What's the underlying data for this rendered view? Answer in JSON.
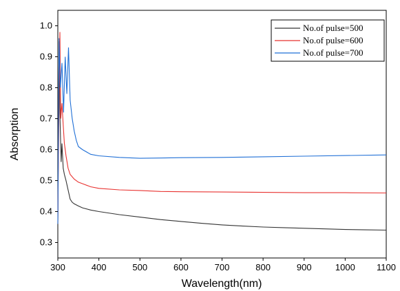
{
  "chart_data": {
    "type": "line",
    "title": "",
    "xlabel": "Wavelength(nm)",
    "ylabel": "Absorption",
    "xlim": [
      300,
      1100
    ],
    "ylim": [
      0.25,
      1.05
    ],
    "xticks": [
      300,
      400,
      500,
      600,
      700,
      800,
      900,
      1000,
      1100
    ],
    "yticks": [
      0.3,
      0.4,
      0.5,
      0.6,
      0.7,
      0.8,
      0.9,
      1.0
    ],
    "yticklabels": [
      "0.3",
      "0.4",
      "0.5",
      "0.6",
      "0.7",
      "0.8",
      "0.9",
      "1.0"
    ],
    "legend_position": "top-right",
    "grid": false,
    "series": [
      {
        "name": "No.of pulse=500",
        "color": "#333333",
        "points": [
          [
            300,
            0.36
          ],
          [
            303,
            0.95
          ],
          [
            305,
            0.72
          ],
          [
            308,
            0.56
          ],
          [
            310,
            0.62
          ],
          [
            313,
            0.54
          ],
          [
            316,
            0.52
          ],
          [
            320,
            0.5
          ],
          [
            325,
            0.47
          ],
          [
            330,
            0.44
          ],
          [
            335,
            0.43
          ],
          [
            340,
            0.425
          ],
          [
            350,
            0.418
          ],
          [
            360,
            0.412
          ],
          [
            380,
            0.405
          ],
          [
            400,
            0.4
          ],
          [
            450,
            0.39
          ],
          [
            500,
            0.382
          ],
          [
            550,
            0.374
          ],
          [
            600,
            0.368
          ],
          [
            650,
            0.362
          ],
          [
            700,
            0.357
          ],
          [
            750,
            0.353
          ],
          [
            800,
            0.35
          ],
          [
            850,
            0.348
          ],
          [
            900,
            0.346
          ],
          [
            950,
            0.344
          ],
          [
            1000,
            0.342
          ],
          [
            1050,
            0.341
          ],
          [
            1100,
            0.34
          ]
        ]
      },
      {
        "name": "No.of pulse=600",
        "color": "#e8312f",
        "points": [
          [
            300,
            0.36
          ],
          [
            303,
            0.78
          ],
          [
            305,
            0.98
          ],
          [
            307,
            0.7
          ],
          [
            310,
            0.75
          ],
          [
            313,
            0.68
          ],
          [
            316,
            0.62
          ],
          [
            320,
            0.58
          ],
          [
            325,
            0.54
          ],
          [
            330,
            0.52
          ],
          [
            340,
            0.505
          ],
          [
            350,
            0.495
          ],
          [
            360,
            0.49
          ],
          [
            380,
            0.48
          ],
          [
            400,
            0.475
          ],
          [
            450,
            0.47
          ],
          [
            500,
            0.468
          ],
          [
            550,
            0.465
          ],
          [
            600,
            0.464
          ],
          [
            700,
            0.463
          ],
          [
            800,
            0.462
          ],
          [
            900,
            0.461
          ],
          [
            1000,
            0.461
          ],
          [
            1100,
            0.46
          ]
        ]
      },
      {
        "name": "No.of pulse=700",
        "color": "#1f6fd6",
        "points": [
          [
            300,
            0.36
          ],
          [
            303,
            0.96
          ],
          [
            306,
            0.8
          ],
          [
            310,
            0.88
          ],
          [
            314,
            0.72
          ],
          [
            318,
            0.9
          ],
          [
            322,
            0.78
          ],
          [
            326,
            0.93
          ],
          [
            330,
            0.76
          ],
          [
            335,
            0.7
          ],
          [
            340,
            0.66
          ],
          [
            345,
            0.63
          ],
          [
            350,
            0.61
          ],
          [
            360,
            0.6
          ],
          [
            380,
            0.585
          ],
          [
            400,
            0.58
          ],
          [
            450,
            0.575
          ],
          [
            500,
            0.572
          ],
          [
            550,
            0.573
          ],
          [
            600,
            0.574
          ],
          [
            700,
            0.575
          ],
          [
            800,
            0.577
          ],
          [
            900,
            0.579
          ],
          [
            1000,
            0.581
          ],
          [
            1100,
            0.583
          ]
        ]
      }
    ]
  }
}
